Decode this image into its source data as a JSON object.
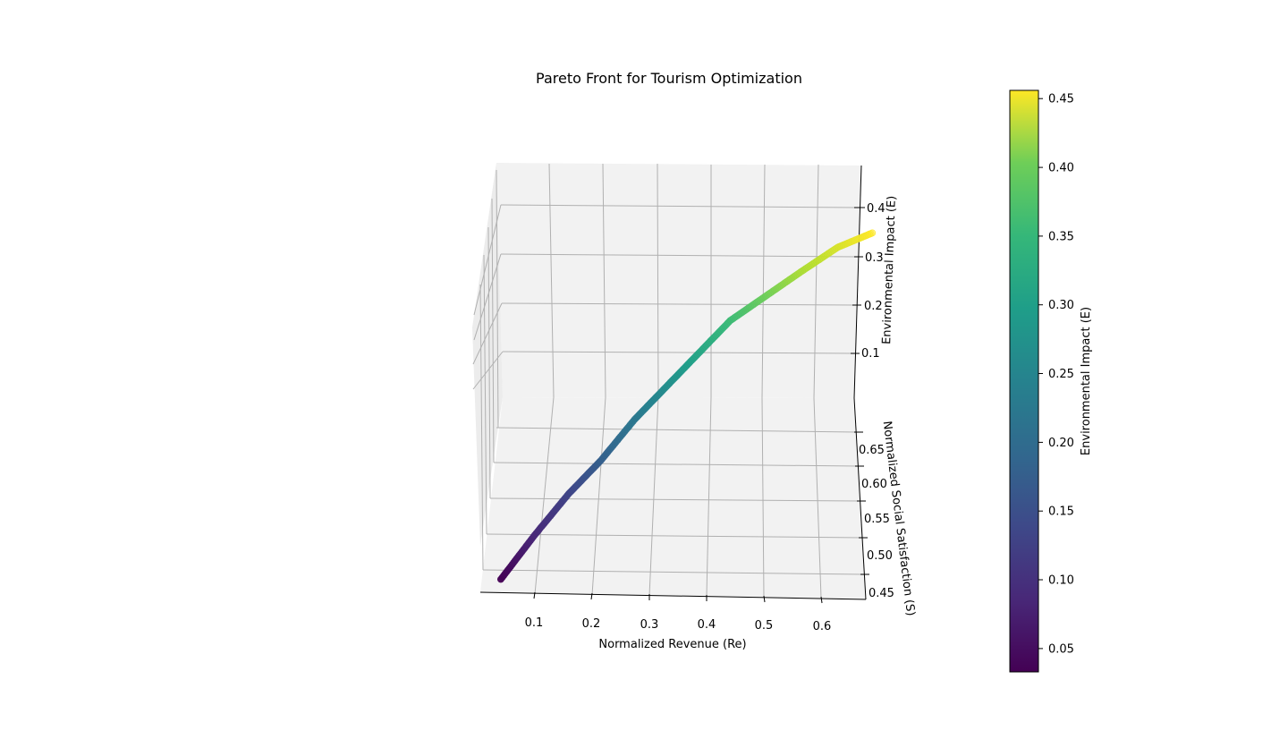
{
  "chart_data": {
    "type": "scatter3d",
    "title": "Pareto Front for Tourism Optimization",
    "xlabel": "Normalized Revenue (Re)",
    "ylabel": "Normalized Social Satisfaction (S)",
    "zlabel": "Environmental Impact (E)",
    "colorbar_label": "Environmental Impact (E)",
    "colormap": "viridis",
    "x_ticks": [
      "0.1",
      "0.2",
      "0.3",
      "0.4",
      "0.5",
      "0.6"
    ],
    "y_ticks": [
      "0.45",
      "0.50",
      "0.55",
      "0.60",
      "0.65"
    ],
    "z_ticks": [
      "0.1",
      "0.2",
      "0.3",
      "0.4"
    ],
    "colorbar_ticks": [
      "0.05",
      "0.10",
      "0.15",
      "0.20",
      "0.25",
      "0.30",
      "0.35",
      "0.40",
      "0.45"
    ],
    "colorbar_range": [
      0.033,
      0.456
    ],
    "series": [
      {
        "name": "Pareto front",
        "points": [
          {
            "re": 0.04,
            "s": 0.45,
            "e": 0.033
          },
          {
            "re": 0.09,
            "s": 0.48,
            "e": 0.08
          },
          {
            "re": 0.14,
            "s": 0.51,
            "e": 0.12
          },
          {
            "re": 0.19,
            "s": 0.53,
            "e": 0.16
          },
          {
            "re": 0.24,
            "s": 0.56,
            "e": 0.2
          },
          {
            "re": 0.29,
            "s": 0.58,
            "e": 0.24
          },
          {
            "re": 0.34,
            "s": 0.6,
            "e": 0.28
          },
          {
            "re": 0.39,
            "s": 0.62,
            "e": 0.32
          },
          {
            "re": 0.45,
            "s": 0.63,
            "e": 0.36
          },
          {
            "re": 0.51,
            "s": 0.64,
            "e": 0.4
          },
          {
            "re": 0.57,
            "s": 0.655,
            "e": 0.43
          },
          {
            "re": 0.63,
            "s": 0.66,
            "e": 0.456
          }
        ]
      }
    ]
  }
}
